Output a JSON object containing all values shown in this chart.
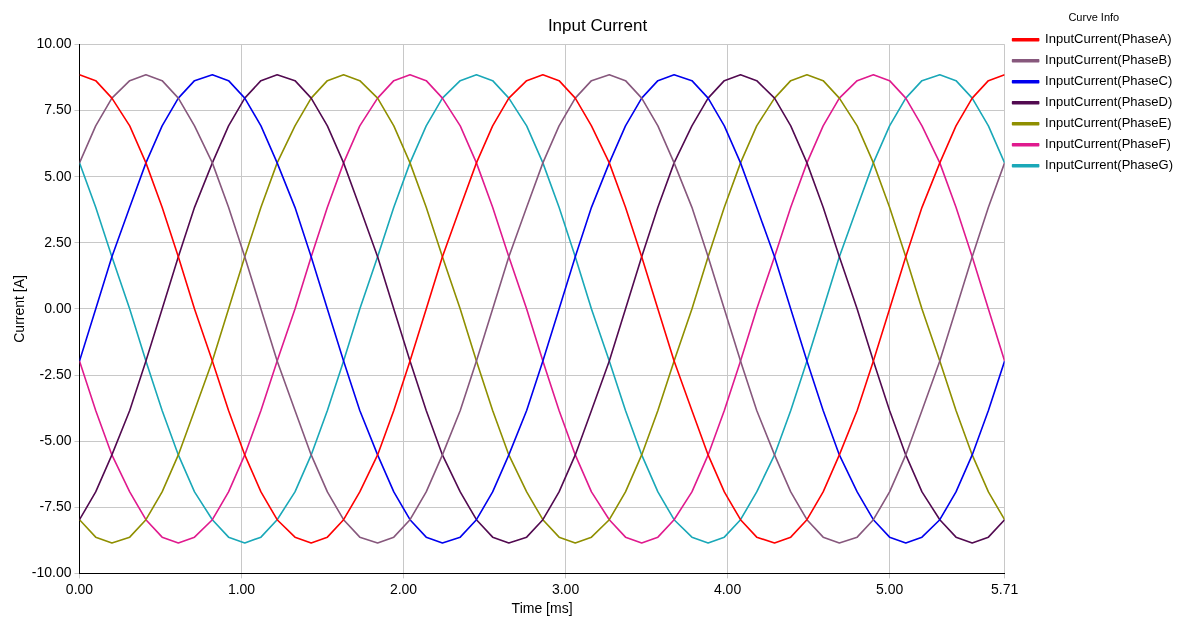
{
  "chart_data": {
    "type": "line",
    "title": "Input Current",
    "xlabel": "Time [ms]",
    "ylabel": "Current [A]",
    "legend_title": "Curve Info",
    "legend": "right",
    "grid": true,
    "marker": "none",
    "line_style": "solid",
    "xlim": [
      0,
      5.71
    ],
    "xticks": [
      {
        "value": 0,
        "label": "0.00"
      },
      {
        "value": 1,
        "label": "1.00"
      },
      {
        "value": 2,
        "label": "2.00"
      },
      {
        "value": 3,
        "label": "3.00"
      },
      {
        "value": 4,
        "label": "4.00"
      },
      {
        "value": 5,
        "label": "5.00"
      },
      {
        "value": 5.71,
        "label": "5.71"
      }
    ],
    "ylim": [
      -10,
      10
    ],
    "yticks": [
      {
        "value": -10,
        "label": "-10.00"
      },
      {
        "value": -7.5,
        "label": "-7.50"
      },
      {
        "value": -5,
        "label": "-5.00"
      },
      {
        "value": -2.5,
        "label": "-2.50"
      },
      {
        "value": 0,
        "label": "0.00"
      },
      {
        "value": 2.5,
        "label": "2.50"
      },
      {
        "value": 5,
        "label": "5.00"
      },
      {
        "value": 7.5,
        "label": "7.50"
      },
      {
        "value": 10,
        "label": "10.00"
      }
    ],
    "x": [
      0,
      0.1,
      0.2,
      0.31,
      0.41,
      0.51,
      0.61,
      0.71,
      0.82,
      0.92,
      1.02,
      1.12,
      1.22,
      1.33,
      1.43,
      1.53,
      1.63,
      1.73,
      1.84,
      1.94,
      2.04,
      2.14,
      2.24,
      2.35,
      2.45,
      2.55,
      2.65,
      2.76,
      2.86,
      2.96,
      3.06,
      3.16,
      3.27,
      3.37,
      3.47,
      3.57,
      3.67,
      3.78,
      3.88,
      3.98,
      4.08,
      4.18,
      4.29,
      4.39,
      4.49,
      4.59,
      4.69,
      4.8,
      4.9,
      5.0,
      5.1,
      5.2,
      5.31,
      5.41,
      5.51,
      5.61,
      5.71
    ],
    "series": [
      {
        "name": "InputCurrent(PhaseA)",
        "color": "#ff0000",
        "values": [
          8.85,
          8.63,
          7.97,
          6.92,
          5.52,
          3.84,
          1.97,
          0,
          -1.97,
          -3.84,
          -5.52,
          -6.92,
          -7.97,
          -8.63,
          -8.85,
          -8.63,
          -7.97,
          -6.92,
          -5.52,
          -3.84,
          -1.97,
          0,
          1.97,
          3.84,
          5.52,
          6.92,
          7.97,
          8.63,
          8.85,
          8.63,
          7.97,
          6.92,
          5.52,
          3.84,
          1.97,
          0,
          -1.97,
          -3.84,
          -5.52,
          -6.92,
          -7.97,
          -8.63,
          -8.85,
          -8.63,
          -7.97,
          -6.92,
          -5.52,
          -3.84,
          -1.97,
          0,
          1.97,
          3.84,
          5.52,
          6.92,
          7.97,
          8.63,
          8.85
        ]
      },
      {
        "name": "InputCurrent(PhaseB)",
        "color": "#87587d",
        "values": [
          5.52,
          6.92,
          7.97,
          8.63,
          8.85,
          8.63,
          7.97,
          6.92,
          5.52,
          3.84,
          1.97,
          0,
          -1.97,
          -3.84,
          -5.52,
          -6.92,
          -7.97,
          -8.63,
          -8.85,
          -8.63,
          -7.97,
          -6.92,
          -5.52,
          -3.84,
          -1.97,
          0,
          1.97,
          3.84,
          5.52,
          6.92,
          7.97,
          8.63,
          8.85,
          8.63,
          7.97,
          6.92,
          5.52,
          3.84,
          1.97,
          0,
          -1.97,
          -3.84,
          -5.52,
          -6.92,
          -7.97,
          -8.63,
          -8.85,
          -8.63,
          -7.97,
          -6.92,
          -5.52,
          -3.84,
          -1.97,
          0,
          1.97,
          3.84,
          5.52
        ]
      },
      {
        "name": "InputCurrent(PhaseC)",
        "color": "#0000ee",
        "values": [
          -1.97,
          0,
          1.97,
          3.84,
          5.52,
          6.92,
          7.97,
          8.63,
          8.85,
          8.63,
          7.97,
          6.92,
          5.52,
          3.84,
          1.97,
          0,
          -1.97,
          -3.84,
          -5.52,
          -6.92,
          -7.97,
          -8.63,
          -8.85,
          -8.63,
          -7.97,
          -6.92,
          -5.52,
          -3.84,
          -1.97,
          0,
          1.97,
          3.84,
          5.52,
          6.92,
          7.97,
          8.63,
          8.85,
          8.63,
          7.97,
          6.92,
          5.52,
          3.84,
          1.97,
          0,
          -1.97,
          -3.84,
          -5.52,
          -6.92,
          -7.97,
          -8.63,
          -8.85,
          -8.63,
          -7.97,
          -6.92,
          -5.52,
          -3.84,
          -1.97
        ]
      },
      {
        "name": "InputCurrent(PhaseD)",
        "color": "#520a50",
        "values": [
          -7.97,
          -6.92,
          -5.52,
          -3.84,
          -1.97,
          0,
          1.97,
          3.84,
          5.52,
          6.92,
          7.97,
          8.63,
          8.85,
          8.63,
          7.97,
          6.92,
          5.52,
          3.84,
          1.97,
          0,
          -1.97,
          -3.84,
          -5.52,
          -6.92,
          -7.97,
          -8.63,
          -8.85,
          -8.63,
          -7.97,
          -6.92,
          -5.52,
          -3.84,
          -1.97,
          0,
          1.97,
          3.84,
          5.52,
          6.92,
          7.97,
          8.63,
          8.85,
          8.63,
          7.97,
          6.92,
          5.52,
          3.84,
          1.97,
          0,
          -1.97,
          -3.84,
          -5.52,
          -6.92,
          -7.97,
          -8.63,
          -8.85,
          -8.63,
          -7.97
        ]
      },
      {
        "name": "InputCurrent(PhaseE)",
        "color": "#8f8f00",
        "values": [
          -7.97,
          -8.63,
          -8.85,
          -8.63,
          -7.97,
          -6.92,
          -5.52,
          -3.84,
          -1.97,
          0,
          1.97,
          3.84,
          5.52,
          6.92,
          7.97,
          8.63,
          8.85,
          8.63,
          7.97,
          6.92,
          5.52,
          3.84,
          1.97,
          0,
          -1.97,
          -3.84,
          -5.52,
          -6.92,
          -7.97,
          -8.63,
          -8.85,
          -8.63,
          -7.97,
          -6.92,
          -5.52,
          -3.84,
          -1.97,
          0,
          1.97,
          3.84,
          5.52,
          6.92,
          7.97,
          8.63,
          8.85,
          8.63,
          7.97,
          6.92,
          5.52,
          3.84,
          1.97,
          0,
          -1.97,
          -3.84,
          -5.52,
          -6.92,
          -7.97
        ]
      },
      {
        "name": "InputCurrent(PhaseF)",
        "color": "#e01a8e",
        "values": [
          -1.97,
          -3.84,
          -5.52,
          -6.92,
          -7.97,
          -8.63,
          -8.85,
          -8.63,
          -7.97,
          -6.92,
          -5.52,
          -3.84,
          -1.97,
          0,
          1.97,
          3.84,
          5.52,
          6.92,
          7.97,
          8.63,
          8.85,
          8.63,
          7.97,
          6.92,
          5.52,
          3.84,
          1.97,
          0,
          -1.97,
          -3.84,
          -5.52,
          -6.92,
          -7.97,
          -8.63,
          -8.85,
          -8.63,
          -7.97,
          -6.92,
          -5.52,
          -3.84,
          -1.97,
          0,
          1.97,
          3.84,
          5.52,
          6.92,
          7.97,
          8.63,
          8.85,
          8.63,
          7.97,
          6.92,
          5.52,
          3.84,
          1.97,
          0,
          -1.97
        ]
      },
      {
        "name": "InputCurrent(PhaseG)",
        "color": "#1aa8b8",
        "values": [
          5.52,
          3.84,
          1.97,
          0,
          -1.97,
          -3.84,
          -5.52,
          -6.92,
          -7.97,
          -8.63,
          -8.85,
          -8.63,
          -7.97,
          -6.92,
          -5.52,
          -3.84,
          -1.97,
          0,
          1.97,
          3.84,
          5.52,
          6.92,
          7.97,
          8.63,
          8.85,
          8.63,
          7.97,
          6.92,
          5.52,
          3.84,
          1.97,
          0,
          -1.97,
          -3.84,
          -5.52,
          -6.92,
          -7.97,
          -8.63,
          -8.85,
          -8.63,
          -7.97,
          -6.92,
          -5.52,
          -3.84,
          -1.97,
          0,
          1.97,
          3.84,
          5.52,
          6.92,
          7.97,
          8.63,
          8.85,
          8.63,
          7.97,
          6.92,
          5.52
        ]
      }
    ]
  }
}
